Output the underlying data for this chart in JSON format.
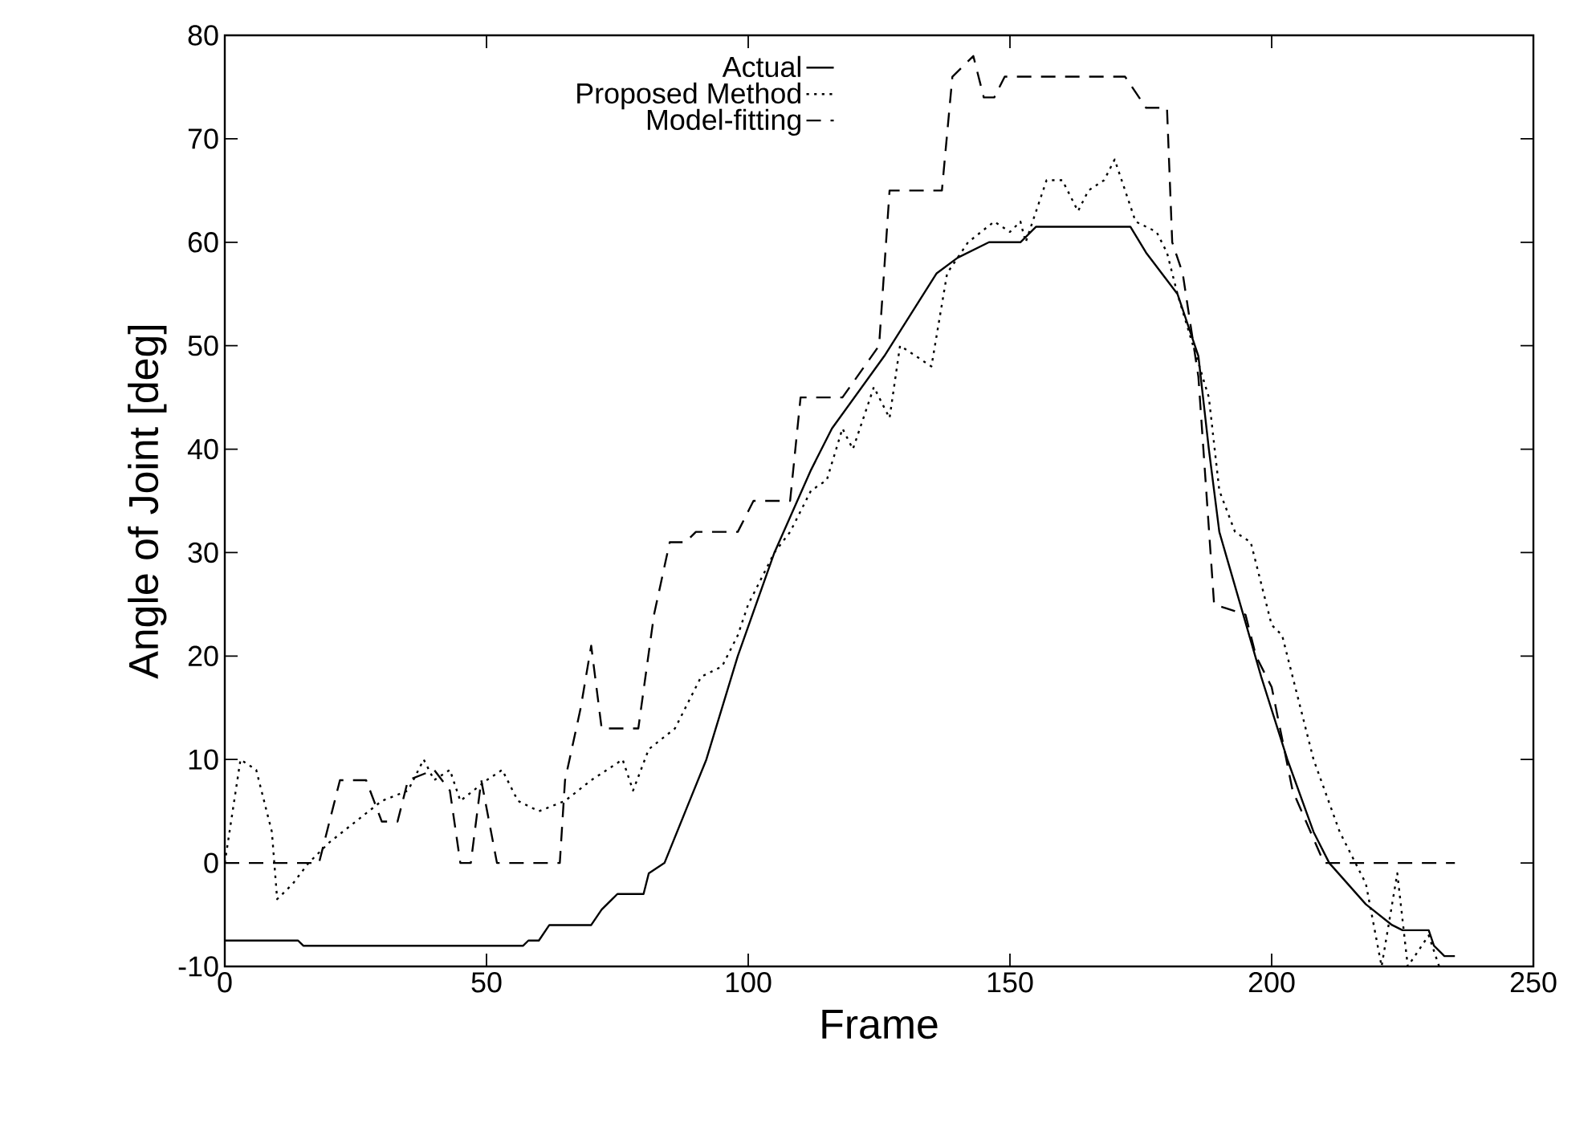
{
  "chart_data": {
    "type": "line",
    "xlabel": "Frame",
    "ylabel": "Angle of Joint [deg]",
    "xlim": [
      0,
      250
    ],
    "ylim": [
      -10,
      80
    ],
    "xticks": [
      0,
      50,
      100,
      150,
      200,
      250
    ],
    "yticks": [
      -10,
      0,
      10,
      20,
      30,
      40,
      50,
      60,
      70,
      80
    ],
    "grid": false,
    "legend": "top",
    "marker": "none",
    "series": [
      {
        "name": "Actual",
        "color": "#000000",
        "line_style": "solid",
        "x": [
          0,
          14,
          15,
          57,
          58,
          60,
          62,
          70,
          72,
          75,
          80,
          81,
          84,
          88,
          92,
          98,
          105,
          112,
          116,
          126,
          136,
          140,
          146,
          152,
          155,
          173,
          176,
          182,
          186,
          188,
          190,
          194,
          198,
          203,
          208,
          211,
          218,
          223,
          225,
          230,
          231,
          233,
          235
        ],
        "values": [
          -7.5,
          -7.5,
          -8,
          -8,
          -7.5,
          -7.5,
          -6,
          -6,
          -4.5,
          -3,
          -3,
          -1,
          0,
          5,
          10,
          20,
          30,
          38,
          42,
          49,
          57,
          58.5,
          60,
          60,
          61.5,
          61.5,
          59,
          55,
          49,
          40,
          32,
          25,
          18,
          10,
          3,
          0,
          -4,
          -6,
          -6.5,
          -6.5,
          -8,
          -9,
          -9
        ]
      },
      {
        "name": "Proposed Method",
        "color": "#000000",
        "line_style": "dotted",
        "x": [
          0,
          3,
          6,
          9,
          10,
          13,
          16,
          20,
          25,
          30,
          35,
          38,
          40,
          43,
          45,
          50,
          53,
          56,
          60,
          65,
          70,
          76,
          78,
          81,
          86,
          91,
          95,
          98,
          100,
          105,
          108,
          112,
          115,
          118,
          120,
          124,
          127,
          129,
          135,
          138,
          142,
          147,
          150,
          152,
          153,
          157,
          160,
          163,
          165,
          168,
          170,
          172,
          174,
          178,
          180,
          182,
          185,
          188,
          190,
          193,
          196,
          200,
          202,
          208,
          213,
          218,
          221,
          224,
          226,
          230,
          232
        ],
        "values": [
          0,
          10,
          9,
          3,
          -3.5,
          -2,
          0,
          2,
          4,
          6,
          7,
          10,
          8,
          9,
          6,
          8,
          9,
          6,
          5,
          6,
          8,
          10,
          7,
          11,
          13,
          18,
          19,
          22,
          25,
          30,
          32,
          36,
          37,
          42,
          40,
          46,
          43,
          50,
          48,
          57,
          60,
          62,
          61,
          62,
          60,
          66,
          66,
          63,
          65,
          66,
          68,
          65,
          62,
          61,
          59,
          55,
          50,
          45,
          36,
          32,
          31,
          23,
          22,
          10,
          3,
          -2,
          -10,
          -1,
          -10,
          -7,
          -10
        ]
      },
      {
        "name": "Model-fitting",
        "color": "#000000",
        "line_style": "dashed",
        "x": [
          0,
          18,
          22,
          27,
          30,
          33,
          35,
          40,
          43,
          45,
          47,
          49,
          52,
          64,
          65,
          68,
          70,
          72,
          79,
          82,
          85,
          88,
          90,
          98,
          101,
          108,
          110,
          118,
          125,
          127,
          137,
          139,
          143,
          145,
          147,
          149,
          172,
          176,
          180,
          181,
          183,
          186,
          189,
          195,
          197,
          200,
          204,
          210,
          235
        ],
        "values": [
          0,
          0,
          8,
          8,
          4,
          4,
          8,
          9,
          7,
          0,
          0,
          8,
          0,
          0,
          8,
          15,
          21,
          13,
          13,
          24,
          31,
          31,
          32,
          32,
          35,
          35,
          45,
          45,
          50,
          65,
          65,
          76,
          78,
          74,
          74,
          76,
          76,
          73,
          73,
          60,
          57,
          47,
          25,
          24,
          20,
          17,
          7,
          0,
          0
        ]
      }
    ]
  }
}
